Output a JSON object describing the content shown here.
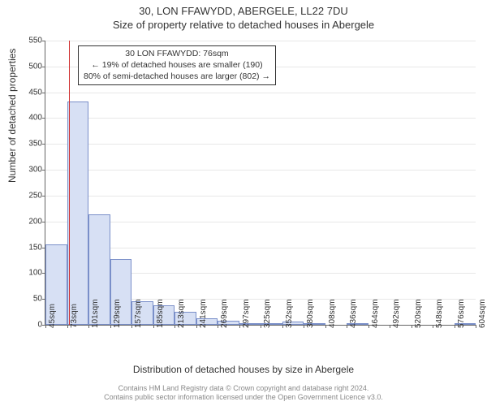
{
  "title_main": "30, LON FFAWYDD, ABERGELE, LL22 7DU",
  "title_sub": "Size of property relative to detached houses in Abergele",
  "y_label": "Number of detached properties",
  "x_label": "Distribution of detached houses by size in Abergele",
  "footer_line1": "Contains HM Land Registry data © Crown copyright and database right 2024.",
  "footer_line2": "Contains public sector information licensed under the Open Government Licence v3.0.",
  "annotation": {
    "line1": "30 LON FFAWYDD: 76sqm",
    "line2": "← 19% of detached houses are smaller (190)",
    "line3": "80% of semi-detached houses are larger (802) →"
  },
  "chart": {
    "type": "histogram",
    "background_color": "#ffffff",
    "grid_color": "#666666",
    "axis_color": "#666666",
    "bar_fill": "#d7e0f4",
    "bar_border": "#7a8fc9",
    "marker_color": "#d03030",
    "marker_x_value": 76,
    "x_start": 45,
    "x_bin_width": 28,
    "y_max": 550,
    "y_tick_step": 50,
    "y_ticks": [
      0,
      50,
      100,
      150,
      200,
      250,
      300,
      350,
      400,
      450,
      500,
      550
    ],
    "x_tick_labels": [
      "45sqm",
      "73sqm",
      "101sqm",
      "129sqm",
      "157sqm",
      "185sqm",
      "213sqm",
      "241sqm",
      "269sqm",
      "297sqm",
      "325sqm",
      "352sqm",
      "380sqm",
      "408sqm",
      "436sqm",
      "464sqm",
      "492sqm",
      "520sqm",
      "548sqm",
      "576sqm",
      "604sqm"
    ],
    "bar_values": [
      155,
      432,
      214,
      128,
      45,
      38,
      25,
      12,
      8,
      3,
      2,
      6,
      2,
      0,
      2,
      0,
      0,
      0,
      0,
      2
    ],
    "title_fontsize": 13,
    "label_fontsize": 12,
    "tick_fontsize": 10,
    "annotation_fontsize": 10.5,
    "footer_fontsize": 9
  }
}
